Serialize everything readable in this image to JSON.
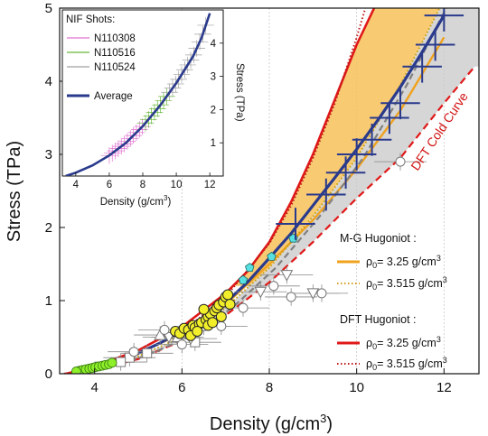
{
  "chart_data": {
    "type": "scatter",
    "xlabel": "Density (g/cm",
    "xlabel_sup": "3",
    "xlabel_end": ")",
    "ylabel": "Stress (TPa)",
    "xlim": [
      3.2,
      12.8
    ],
    "ylim": [
      0,
      5
    ],
    "xticks": [
      4,
      6,
      8,
      10,
      12
    ],
    "yticks": [
      0,
      1,
      2,
      3,
      4,
      5
    ],
    "x_gridlines": [
      6,
      8,
      10,
      12
    ],
    "annotation": "DFT Cold Curve",
    "legend": {
      "mg_title": "M-G Hugoniot :",
      "dft_title": "DFT Hugoniot :",
      "entry_prefix": "ρ",
      "entry_sub": "0",
      "entry_unit": "g/cm",
      "entry_unit_sup": "3",
      "rho_a": "= 3.25",
      "rho_b": "= 3.515"
    },
    "colors": {
      "mg": "#f0a21e",
      "mg_fill": "#f7c25a",
      "dft": "#e01818",
      "average": "#2a3a8c",
      "gray_band": "#c8c8c8",
      "data_gray": "#888888",
      "yellow": "#f2ef2a",
      "green": "#8ef02a",
      "cyan": "#58e0e0"
    },
    "series": [
      {
        "name": "M-G Hugoniot ρ0 = 3.25 g/cm3",
        "x": [
          3.35,
          4.0,
          5.0,
          6.0,
          7.0,
          8.0,
          9.0,
          10.0,
          11.0,
          12.0
        ],
        "y": [
          0.0,
          0.08,
          0.28,
          0.55,
          0.95,
          1.5,
          2.1,
          2.8,
          3.6,
          4.6
        ]
      },
      {
        "name": "M-G Hugoniot ρ0 = 3.515 g/cm3",
        "x": [
          3.55,
          4.0,
          5.0,
          6.0,
          7.0,
          8.0,
          9.0,
          10.0,
          11.0,
          11.9
        ],
        "y": [
          0.0,
          0.06,
          0.24,
          0.5,
          0.9,
          1.45,
          2.15,
          2.95,
          3.95,
          5.0
        ]
      },
      {
        "name": "DFT Hugoniot ρ0 = 3.25 g/cm3",
        "x": [
          3.35,
          4.0,
          5.0,
          6.0,
          7.0,
          7.5,
          8.0,
          8.5,
          9.0,
          9.5,
          10.0,
          10.4
        ],
        "y": [
          0.0,
          0.1,
          0.32,
          0.64,
          1.1,
          1.4,
          1.8,
          2.35,
          3.0,
          3.75,
          4.5,
          5.0
        ]
      },
      {
        "name": "DFT Hugoniot ρ0 = 3.515 g/cm3",
        "x": [
          3.55,
          4.0,
          5.0,
          6.0,
          7.0,
          8.0,
          8.5,
          9.0,
          9.5,
          10.0,
          10.2
        ],
        "y": [
          0.0,
          0.07,
          0.27,
          0.57,
          1.05,
          1.78,
          2.3,
          2.95,
          3.7,
          4.6,
          5.0
        ]
      },
      {
        "name": "DFT Cold Curve",
        "x": [
          3.3,
          4.0,
          5.0,
          6.0,
          7.0,
          8.0,
          9.0,
          10.0,
          11.0,
          12.0,
          12.7
        ],
        "y": [
          0.0,
          0.05,
          0.2,
          0.45,
          0.8,
          1.25,
          1.8,
          2.4,
          2.95,
          3.7,
          4.2
        ]
      },
      {
        "name": "Average",
        "x": [
          3.8,
          4.5,
          5.0,
          5.5,
          6.0,
          6.5,
          7.0,
          7.5,
          8.0,
          8.5,
          9.0,
          9.5,
          10.0,
          10.5,
          11.0,
          11.5,
          12.0
        ],
        "y": [
          0.05,
          0.17,
          0.28,
          0.42,
          0.58,
          0.75,
          0.97,
          1.25,
          1.58,
          1.92,
          2.3,
          2.68,
          3.07,
          3.48,
          3.92,
          4.4,
          4.9
        ]
      }
    ],
    "yellow_points": [
      [
        5.85,
        0.58
      ],
      [
        5.95,
        0.55
      ],
      [
        6.05,
        0.62
      ],
      [
        6.15,
        0.6
      ],
      [
        6.25,
        0.66
      ],
      [
        6.3,
        0.63
      ],
      [
        6.4,
        0.68
      ],
      [
        6.45,
        0.7
      ],
      [
        6.55,
        0.74
      ],
      [
        6.6,
        0.78
      ],
      [
        6.65,
        0.82
      ],
      [
        6.75,
        0.86
      ],
      [
        6.8,
        0.9
      ],
      [
        6.85,
        0.94
      ],
      [
        6.95,
        0.98
      ],
      [
        7.0,
        1.05
      ],
      [
        7.05,
        1.08
      ],
      [
        6.6,
        0.66
      ],
      [
        6.7,
        0.7
      ],
      [
        6.9,
        0.78
      ],
      [
        6.2,
        0.52
      ],
      [
        6.35,
        0.58
      ],
      [
        7.1,
        0.95
      ],
      [
        6.5,
        0.88
      ]
    ],
    "green_points": [
      [
        3.65,
        0.04
      ],
      [
        3.72,
        0.05
      ],
      [
        3.8,
        0.06
      ],
      [
        3.88,
        0.07
      ],
      [
        3.95,
        0.08
      ],
      [
        4.02,
        0.09
      ],
      [
        4.1,
        0.1
      ],
      [
        4.18,
        0.11
      ],
      [
        4.25,
        0.12
      ],
      [
        4.33,
        0.13
      ],
      [
        4.4,
        0.15
      ],
      [
        3.58,
        0.03
      ]
    ],
    "cyan_points": [
      [
        7.4,
        1.28
      ],
      [
        7.55,
        1.45
      ],
      [
        8.05,
        1.6
      ],
      [
        8.55,
        1.85
      ]
    ],
    "open_circles": [
      [
        5.6,
        0.6
      ],
      [
        6.5,
        0.65
      ],
      [
        6.9,
        0.65
      ],
      [
        7.4,
        0.9
      ],
      [
        8.1,
        1.2
      ],
      [
        8.5,
        1.05
      ],
      [
        9.2,
        1.1
      ],
      [
        11.0,
        2.9
      ],
      [
        6.0,
        0.4
      ],
      [
        4.9,
        0.3
      ]
    ],
    "open_triangles_down": [
      [
        6.2,
        0.48
      ],
      [
        7.8,
        1.12
      ],
      [
        8.4,
        1.35
      ],
      [
        9.0,
        1.1
      ],
      [
        5.7,
        0.5
      ]
    ],
    "open_triangles_up": [
      [
        5.5,
        0.53
      ],
      [
        5.9,
        0.5
      ]
    ],
    "open_squares": [
      [
        4.8,
        0.22
      ],
      [
        5.2,
        0.28
      ],
      [
        6.3,
        0.43
      ],
      [
        4.6,
        0.16
      ]
    ],
    "blue_errorbars": [
      [
        9.75,
        2.75
      ],
      [
        10.0,
        3.0
      ],
      [
        10.35,
        3.2
      ],
      [
        10.75,
        3.5
      ],
      [
        11.0,
        3.7
      ],
      [
        11.5,
        4.2
      ],
      [
        11.8,
        4.5
      ],
      [
        12.0,
        4.9
      ],
      [
        9.3,
        2.45
      ],
      [
        8.6,
        2.05
      ]
    ],
    "inset": {
      "title": "NIF Shots:",
      "entries": [
        "N110308",
        "N110516",
        "N110524"
      ],
      "entry_colors": [
        "#e070d0",
        "#68b83a",
        "#a0a0a0"
      ],
      "average_label": "Average",
      "xlabel": "Density (g/cm",
      "xlabel_sup": "3",
      "xlabel_end": ")",
      "ylabel": "Stress (TPa)",
      "xlim": [
        3.2,
        12.8
      ],
      "ylim": [
        0,
        5
      ],
      "xticks": [
        4,
        6,
        8,
        10,
        12
      ],
      "yticks": [
        1,
        2,
        3,
        4
      ],
      "average": {
        "x": [
          3.4,
          4.0,
          5.0,
          6.0,
          7.0,
          8.0,
          9.0,
          10.0,
          11.0,
          11.5,
          12.0
        ],
        "y": [
          0.0,
          0.1,
          0.32,
          0.62,
          1.0,
          1.5,
          2.1,
          2.8,
          3.6,
          4.15,
          4.9
        ]
      }
    }
  }
}
